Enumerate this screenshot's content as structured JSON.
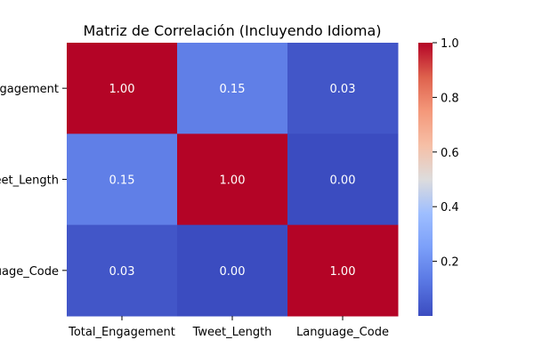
{
  "chart_data": {
    "type": "heatmap",
    "title": "Matriz de Correlación (Incluyendo Idioma)",
    "x_labels": [
      "Total_Engagement",
      "Tweet_Length",
      "Language_Code"
    ],
    "y_labels": [
      "Total_Engagement",
      "Tweet_Length",
      "Language_Code"
    ],
    "values": [
      [
        1.0,
        0.15,
        0.03
      ],
      [
        0.15,
        1.0,
        0.0
      ],
      [
        0.03,
        0.0,
        1.0
      ]
    ],
    "cell_labels": [
      [
        "1.00",
        "0.15",
        "0.03"
      ],
      [
        "0.15",
        "1.00",
        "0.00"
      ],
      [
        "0.03",
        "0.00",
        "1.00"
      ]
    ],
    "colormap": "coolwarm",
    "color_range": [
      0.0,
      1.0
    ],
    "colorbar_ticks": [
      "0.2",
      "0.4",
      "0.6",
      "0.8",
      "1.0"
    ],
    "colorbar_tick_values": [
      0.2,
      0.4,
      0.6,
      0.8,
      1.0
    ]
  }
}
